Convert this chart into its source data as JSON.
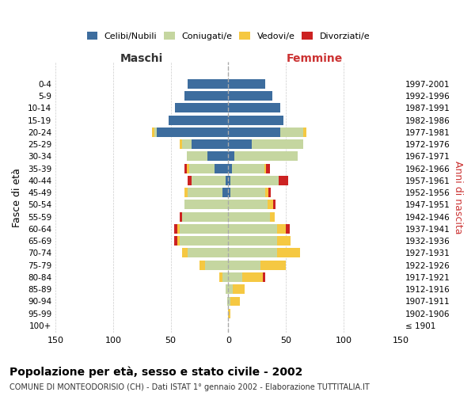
{
  "age_groups": [
    "100+",
    "95-99",
    "90-94",
    "85-89",
    "80-84",
    "75-79",
    "70-74",
    "65-69",
    "60-64",
    "55-59",
    "50-54",
    "45-49",
    "40-44",
    "35-39",
    "30-34",
    "25-29",
    "20-24",
    "15-19",
    "10-14",
    "5-9",
    "0-4"
  ],
  "birth_years": [
    "≤ 1901",
    "1902-1906",
    "1907-1911",
    "1912-1916",
    "1917-1921",
    "1922-1926",
    "1927-1931",
    "1932-1936",
    "1937-1941",
    "1942-1946",
    "1947-1951",
    "1952-1956",
    "1957-1961",
    "1962-1966",
    "1967-1971",
    "1972-1976",
    "1977-1981",
    "1982-1986",
    "1987-1991",
    "1992-1996",
    "1997-2001"
  ],
  "male": {
    "celibe": [
      0,
      0,
      0,
      0,
      0,
      0,
      0,
      0,
      0,
      0,
      0,
      5,
      2,
      12,
      18,
      32,
      62,
      52,
      46,
      38,
      35
    ],
    "coniugato": [
      0,
      0,
      1,
      2,
      5,
      20,
      35,
      42,
      42,
      40,
      38,
      30,
      30,
      22,
      18,
      8,
      2,
      0,
      0,
      0,
      0
    ],
    "vedovo": [
      0,
      0,
      0,
      0,
      3,
      5,
      5,
      2,
      2,
      0,
      0,
      3,
      0,
      2,
      0,
      2,
      2,
      0,
      0,
      0,
      0
    ],
    "divorziato": [
      0,
      0,
      0,
      0,
      0,
      0,
      0,
      3,
      3,
      2,
      0,
      0,
      3,
      2,
      0,
      0,
      0,
      0,
      0,
      0,
      0
    ]
  },
  "female": {
    "nubile": [
      0,
      0,
      0,
      0,
      0,
      0,
      0,
      0,
      0,
      0,
      0,
      2,
      2,
      3,
      5,
      20,
      45,
      48,
      45,
      38,
      32
    ],
    "coniugata": [
      0,
      0,
      2,
      4,
      12,
      28,
      42,
      42,
      42,
      36,
      34,
      30,
      42,
      28,
      55,
      45,
      20,
      0,
      0,
      0,
      0
    ],
    "vedova": [
      0,
      2,
      8,
      10,
      18,
      22,
      20,
      12,
      8,
      4,
      5,
      3,
      0,
      2,
      0,
      0,
      3,
      0,
      0,
      0,
      0
    ],
    "divorziata": [
      0,
      0,
      0,
      0,
      2,
      0,
      0,
      0,
      3,
      0,
      2,
      2,
      8,
      3,
      0,
      0,
      0,
      0,
      0,
      0,
      0
    ]
  },
  "colors": {
    "celibe": "#3d6d9e",
    "coniugato": "#c5d6a0",
    "vedovo": "#f5c842",
    "divorziato": "#cc2222"
  },
  "xlim": 150,
  "title": "Popolazione per età, sesso e stato civile - 2002",
  "subtitle": "COMUNE DI MONTEODORISIO (CH) - Dati ISTAT 1° gennaio 2002 - Elaborazione TUTTITALIA.IT",
  "ylabel_left": "Fasce di età",
  "ylabel_right": "Anni di nascita",
  "xlabel_left": "Maschi",
  "xlabel_right": "Femmine",
  "background_color": "#ffffff",
  "grid_color": "#cccccc"
}
